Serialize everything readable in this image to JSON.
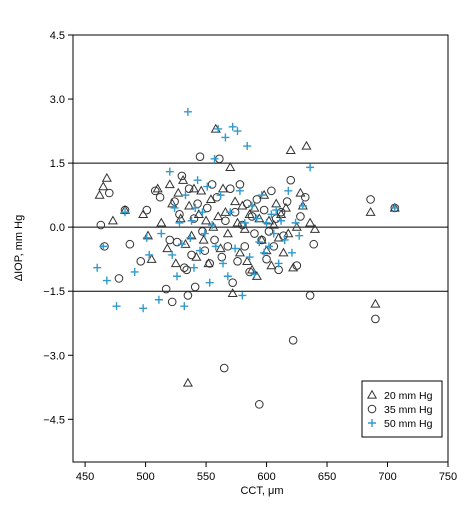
{
  "chart_data": {
    "type": "scatter",
    "title": "",
    "xlabel": "CCT, μm",
    "ylabel": "ΔIOP, mm Hg",
    "xlim": [
      440,
      750
    ],
    "ylim": [
      -5.5,
      4.5
    ],
    "x_ticks": [
      450,
      500,
      550,
      600,
      650,
      700,
      750
    ],
    "x_tick_labels": [
      "450",
      "500",
      "550",
      "600",
      "650",
      "700",
      "750"
    ],
    "y_ticks": [
      4.5,
      3.0,
      1.5,
      0.0,
      -1.5,
      -3.0,
      -4.5
    ],
    "y_tick_labels": [
      "4.5",
      "3.0",
      "1.5",
      "0.0",
      "−1.5",
      "−3.0",
      "−4.5"
    ],
    "reference_lines": [
      1.5,
      0.0,
      -1.5
    ],
    "grid": false,
    "legend_position": "bottom-right",
    "series": [
      {
        "name": "20 mm Hg",
        "marker": "triangle",
        "color": "#333333",
        "points": [
          [
            462,
            0.75
          ],
          [
            465,
            0.95
          ],
          [
            468,
            1.15
          ],
          [
            473,
            0.15
          ],
          [
            483,
            0.4
          ],
          [
            498,
            0.3
          ],
          [
            502,
            -0.2
          ],
          [
            505,
            -0.75
          ],
          [
            510,
            0.9
          ],
          [
            513,
            0.1
          ],
          [
            518,
            -0.5
          ],
          [
            520,
            1.0
          ],
          [
            522,
            0.55
          ],
          [
            525,
            -0.85
          ],
          [
            527,
            0.8
          ],
          [
            529,
            0.2
          ],
          [
            531,
            1.1
          ],
          [
            533,
            -0.4
          ],
          [
            535,
            -3.65
          ],
          [
            536,
            0.5
          ],
          [
            538,
            -0.2
          ],
          [
            540,
            0.9
          ],
          [
            542,
            -0.7
          ],
          [
            544,
            0.3
          ],
          [
            546,
            0.85
          ],
          [
            548,
            -0.3
          ],
          [
            550,
            0.15
          ],
          [
            552,
            -0.85
          ],
          [
            554,
            0.65
          ],
          [
            556,
            0.0
          ],
          [
            558,
            2.3
          ],
          [
            560,
            0.25
          ],
          [
            562,
            -0.5
          ],
          [
            564,
            0.9
          ],
          [
            566,
            0.35
          ],
          [
            568,
            -0.15
          ],
          [
            570,
            1.4
          ],
          [
            572,
            -1.55
          ],
          [
            574,
            0.6
          ],
          [
            576,
            0.1
          ],
          [
            578,
            -0.6
          ],
          [
            580,
            0.5
          ],
          [
            582,
            -0.05
          ],
          [
            584,
            -0.8
          ],
          [
            586,
            0.3
          ],
          [
            588,
            -1.0
          ],
          [
            590,
            0.45
          ],
          [
            592,
            -1.15
          ],
          [
            594,
            0.2
          ],
          [
            596,
            -0.3
          ],
          [
            598,
            0.75
          ],
          [
            600,
            -0.55
          ],
          [
            602,
            0.15
          ],
          [
            604,
            -0.9
          ],
          [
            606,
            0.05
          ],
          [
            608,
            0.55
          ],
          [
            610,
            -0.25
          ],
          [
            612,
            0.3
          ],
          [
            614,
            -0.6
          ],
          [
            616,
            0.45
          ],
          [
            618,
            -0.15
          ],
          [
            620,
            1.8
          ],
          [
            622,
            -0.95
          ],
          [
            625,
            0.0
          ],
          [
            628,
            0.8
          ],
          [
            630,
            0.5
          ],
          [
            633,
            1.9
          ],
          [
            636,
            0.1
          ],
          [
            640,
            -0.05
          ],
          [
            686,
            0.35
          ],
          [
            690,
            -1.8
          ],
          [
            706,
            0.45
          ]
        ]
      },
      {
        "name": "35 mm Hg",
        "marker": "circle",
        "color": "#333333",
        "points": [
          [
            463,
            0.05
          ],
          [
            466,
            -0.45
          ],
          [
            470,
            0.8
          ],
          [
            478,
            -1.2
          ],
          [
            483,
            0.4
          ],
          [
            487,
            -0.4
          ],
          [
            496,
            -0.8
          ],
          [
            501,
            0.4
          ],
          [
            508,
            0.85
          ],
          [
            512,
            0.7
          ],
          [
            517,
            -1.45
          ],
          [
            520,
            -0.3
          ],
          [
            522,
            -1.75
          ],
          [
            524,
            0.6
          ],
          [
            526,
            -0.35
          ],
          [
            528,
            0.3
          ],
          [
            530,
            1.2
          ],
          [
            532,
            -0.95
          ],
          [
            534,
            -1.0
          ],
          [
            535,
            -1.6
          ],
          [
            536,
            0.9
          ],
          [
            538,
            -0.65
          ],
          [
            540,
            0.2
          ],
          [
            541,
            -1.4
          ],
          [
            543,
            0.55
          ],
          [
            545,
            1.65
          ],
          [
            547,
            -0.1
          ],
          [
            549,
            -0.55
          ],
          [
            551,
            0.45
          ],
          [
            553,
            -0.85
          ],
          [
            555,
            1.0
          ],
          [
            557,
            -0.3
          ],
          [
            559,
            0.7
          ],
          [
            561,
            1.6
          ],
          [
            563,
            -0.7
          ],
          [
            565,
            -3.3
          ],
          [
            566,
            0.15
          ],
          [
            568,
            -0.45
          ],
          [
            570,
            0.9
          ],
          [
            572,
            -1.3
          ],
          [
            574,
            0.35
          ],
          [
            576,
            -0.8
          ],
          [
            578,
            1.0
          ],
          [
            580,
            0.05
          ],
          [
            582,
            -0.45
          ],
          [
            584,
            0.55
          ],
          [
            586,
            -1.05
          ],
          [
            588,
            0.25
          ],
          [
            590,
            -0.15
          ],
          [
            592,
            0.65
          ],
          [
            594,
            -4.15
          ],
          [
            596,
            -0.3
          ],
          [
            598,
            0.4
          ],
          [
            600,
            -0.75
          ],
          [
            602,
            -0.1
          ],
          [
            604,
            0.85
          ],
          [
            606,
            -0.45
          ],
          [
            608,
            0.2
          ],
          [
            610,
            -1.0
          ],
          [
            612,
            0.35
          ],
          [
            614,
            -0.2
          ],
          [
            617,
            0.6
          ],
          [
            620,
            1.1
          ],
          [
            622,
            -2.65
          ],
          [
            625,
            -0.9
          ],
          [
            628,
            0.25
          ],
          [
            632,
            0.7
          ],
          [
            636,
            -1.6
          ],
          [
            639,
            -0.4
          ],
          [
            686,
            0.65
          ],
          [
            690,
            -2.15
          ],
          [
            706,
            0.45
          ]
        ]
      },
      {
        "name": "50 mm Hg",
        "marker": "plus",
        "color": "#3399cc",
        "points": [
          [
            460,
            -0.95
          ],
          [
            465,
            -0.45
          ],
          [
            468,
            -1.25
          ],
          [
            476,
            -1.85
          ],
          [
            483,
            0.35
          ],
          [
            491,
            -1.05
          ],
          [
            498,
            -1.9
          ],
          [
            501,
            -0.25
          ],
          [
            503,
            -0.65
          ],
          [
            511,
            -1.7
          ],
          [
            513,
            -0.15
          ],
          [
            520,
            1.3
          ],
          [
            522,
            -0.65
          ],
          [
            524,
            0.45
          ],
          [
            526,
            -1.15
          ],
          [
            528,
            0.1
          ],
          [
            530,
            -0.4
          ],
          [
            532,
            -1.85
          ],
          [
            533,
            0.75
          ],
          [
            535,
            2.7
          ],
          [
            537,
            -0.25
          ],
          [
            538,
            0.15
          ],
          [
            540,
            -0.95
          ],
          [
            541,
            0.45
          ],
          [
            543,
            1.1
          ],
          [
            545,
            -0.55
          ],
          [
            547,
            0.35
          ],
          [
            549,
            -0.15
          ],
          [
            551,
            0.95
          ],
          [
            553,
            -1.3
          ],
          [
            555,
            0.05
          ],
          [
            557,
            1.6
          ],
          [
            558,
            -0.45
          ],
          [
            560,
            2.3
          ],
          [
            562,
            0.75
          ],
          [
            564,
            -0.85
          ],
          [
            566,
            2.1
          ],
          [
            568,
            -1.15
          ],
          [
            570,
            0.35
          ],
          [
            572,
            2.35
          ],
          [
            574,
            -0.5
          ],
          [
            576,
            2.25
          ],
          [
            578,
            0.85
          ],
          [
            580,
            -1.6
          ],
          [
            582,
            0.1
          ],
          [
            584,
            1.9
          ],
          [
            586,
            -0.7
          ],
          [
            588,
            0.5
          ],
          [
            590,
            -1.1
          ],
          [
            592,
            0.2
          ],
          [
            594,
            -0.35
          ],
          [
            596,
            0.75
          ],
          [
            598,
            -0.6
          ],
          [
            600,
            0.1
          ],
          [
            602,
            -0.45
          ],
          [
            604,
            0.3
          ],
          [
            606,
            -0.15
          ],
          [
            608,
            0.4
          ],
          [
            610,
            -0.85
          ],
          [
            612,
            0.15
          ],
          [
            615,
            -0.3
          ],
          [
            618,
            0.85
          ],
          [
            621,
            -0.6
          ],
          [
            624,
            0.1
          ],
          [
            627,
            -0.2
          ],
          [
            630,
            0.5
          ],
          [
            636,
            1.4
          ],
          [
            706,
            0.45
          ]
        ]
      }
    ]
  }
}
